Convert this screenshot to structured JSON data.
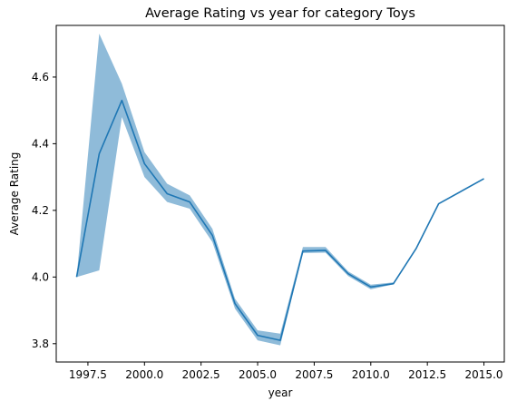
{
  "chart_data": {
    "type": "line",
    "title": "Average Rating vs year for category Toys",
    "xlabel": "year",
    "ylabel": "Average Rating",
    "xlim": [
      1996.1,
      2015.9
    ],
    "ylim": [
      3.745,
      4.755
    ],
    "xticks": [
      1997.5,
      2000.0,
      2002.5,
      2005.0,
      2007.5,
      2010.0,
      2012.5,
      2015.0
    ],
    "xtick_labels": [
      "1997.5",
      "2000.0",
      "2002.5",
      "2005.0",
      "2007.5",
      "2010.0",
      "2012.5",
      "2015.0"
    ],
    "yticks": [
      3.8,
      4.0,
      4.2,
      4.4,
      4.6
    ],
    "ytick_labels": [
      "3.8",
      "4.0",
      "4.2",
      "4.4",
      "4.6"
    ],
    "grid": false,
    "series": [
      {
        "name": "Average Rating",
        "color": "#1f77b4",
        "band_color": "#1f77b4",
        "band_opacity": 0.5,
        "x": [
          1997,
          1998,
          1999,
          2000,
          2001,
          2002,
          2003,
          2004,
          2005,
          2006,
          2007,
          2008,
          2009,
          2010,
          2011,
          2012,
          2013,
          2015
        ],
        "values": [
          4.0,
          4.37,
          4.53,
          4.34,
          4.25,
          4.225,
          4.125,
          3.92,
          3.825,
          3.81,
          4.078,
          4.08,
          4.01,
          3.97,
          3.98,
          4.085,
          4.22,
          4.295
        ],
        "lower": [
          4.0,
          4.02,
          4.48,
          4.3,
          4.225,
          4.205,
          4.105,
          3.905,
          3.81,
          3.795,
          4.072,
          4.073,
          4.003,
          3.963,
          3.978,
          4.085,
          4.22,
          4.295
        ],
        "upper": [
          4.0,
          4.73,
          4.58,
          4.375,
          4.28,
          4.245,
          4.145,
          3.935,
          3.84,
          3.83,
          4.09,
          4.09,
          4.017,
          3.977,
          3.984,
          4.085,
          4.22,
          4.295
        ]
      }
    ]
  }
}
